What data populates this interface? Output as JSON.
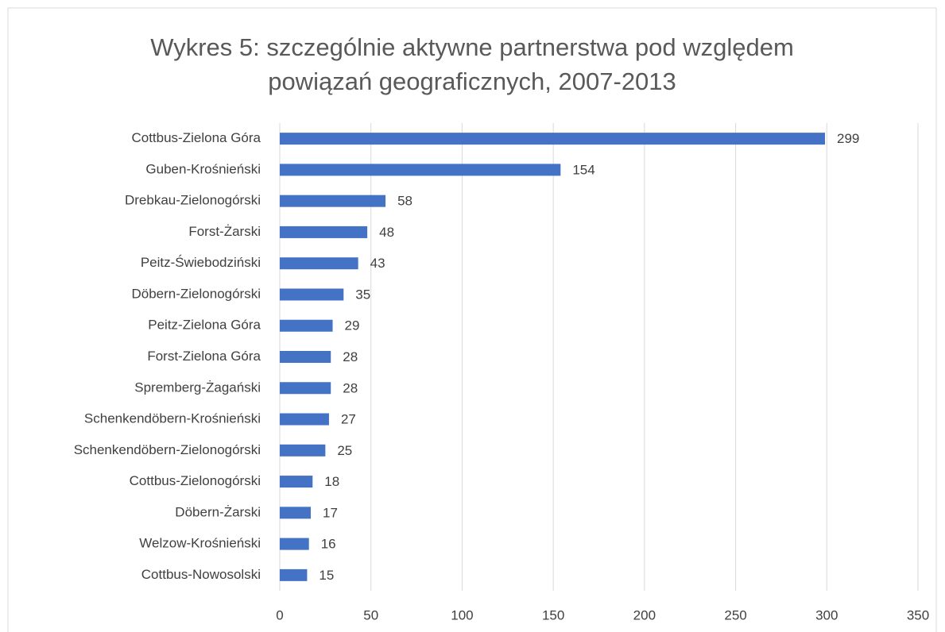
{
  "chart_data": {
    "type": "bar",
    "title": "Wykres 5: szczególnie aktywne partnerstwa pod względem powiązań geograficznych, 2007-2013",
    "categories": [
      "Cottbus-Zielona Góra",
      "Guben-Krośnieński",
      "Drebkau-Zielonogórski",
      "Forst-Żarski",
      "Peitz-Świebodziński",
      "Döbern-Zielonogórski",
      "Peitz-Zielona Góra",
      "Forst-Zielona Góra",
      "Spremberg-Żagański",
      "Schenkendöbern-Krośnieński",
      "Schenkendöbern-Zielonogórski",
      "Cottbus-Zielonogórski",
      "Döbern-Żarski",
      "Welzow-Krośnieński",
      "Cottbus-Nowosolski"
    ],
    "values": [
      299,
      154,
      58,
      48,
      43,
      35,
      29,
      28,
      28,
      27,
      25,
      18,
      17,
      16,
      15
    ],
    "color": "#4472c4",
    "xlim": [
      0,
      350
    ],
    "xticks": [
      0,
      50,
      100,
      150,
      200,
      250,
      300,
      350
    ],
    "grid": true
  }
}
